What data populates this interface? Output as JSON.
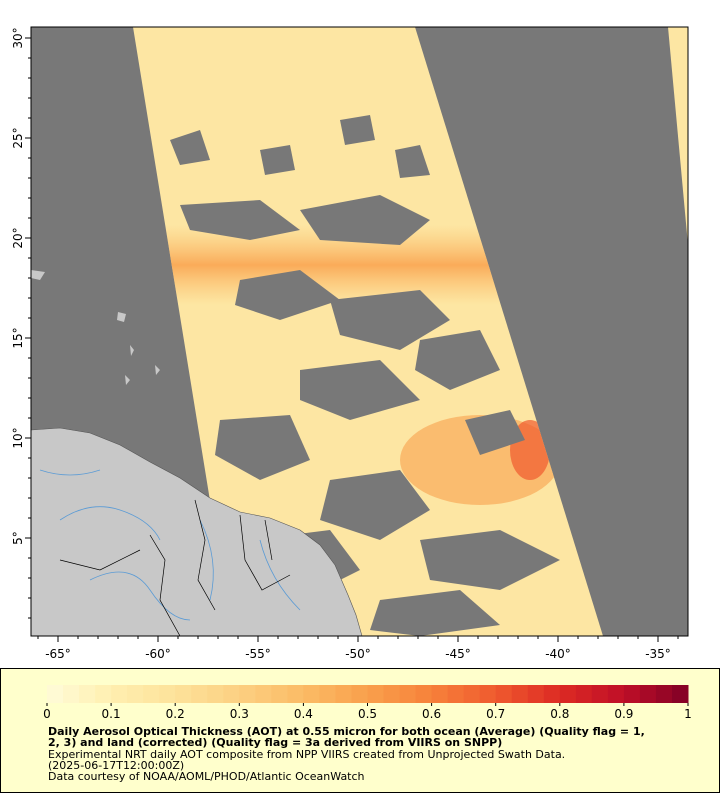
{
  "map": {
    "xlim": [
      -66.35,
      -33.5
    ],
    "ylim": [
      0.1,
      30.55
    ],
    "xticks": [
      {
        "value": -65,
        "label": "-65°"
      },
      {
        "value": -60,
        "label": "-60°"
      },
      {
        "value": -55,
        "label": "-55°"
      },
      {
        "value": -50,
        "label": "-50°"
      },
      {
        "value": -45,
        "label": "-45°"
      },
      {
        "value": -40,
        "label": "-40°"
      },
      {
        "value": -35,
        "label": "-35°"
      }
    ],
    "yticks": [
      {
        "value": 5,
        "label": "5°"
      },
      {
        "value": 10,
        "label": "10°"
      },
      {
        "value": 15,
        "label": "15°"
      },
      {
        "value": 20,
        "label": "20°"
      },
      {
        "value": 25,
        "label": "25°"
      },
      {
        "value": 30,
        "label": "30°"
      }
    ]
  },
  "colorbar": {
    "lim": [
      0,
      1
    ],
    "ticks": [
      0,
      0.1,
      0.2,
      0.3,
      0.4,
      0.5,
      0.6,
      0.7,
      0.8,
      0.9,
      1
    ],
    "colors": [
      "#fffcd9",
      "#ffefb0",
      "#fde29a",
      "#fcd082",
      "#fbbb65",
      "#f9a04c",
      "#f7813a",
      "#ef5a2e",
      "#dd2a24",
      "#bf0f27",
      "#800026"
    ]
  },
  "caption": {
    "title_lines": [
      "Daily Aerosol Optical Thickness (AOT) at 0.55 micron for both ocean (Average) (Quality flag = 1,",
      "2, 3) and land (corrected) (Quality flag = 3a derived from VIIRS on SNPP)"
    ],
    "lines": [
      "Experimental NRT daily AOT composite from NPP VIIRS created from Unprojected Swath Data.",
      "(2025-06-17T12:00:00Z)",
      "Data courtesy of NOAA/AOML/PHOD/Atlantic OceanWatch"
    ]
  }
}
